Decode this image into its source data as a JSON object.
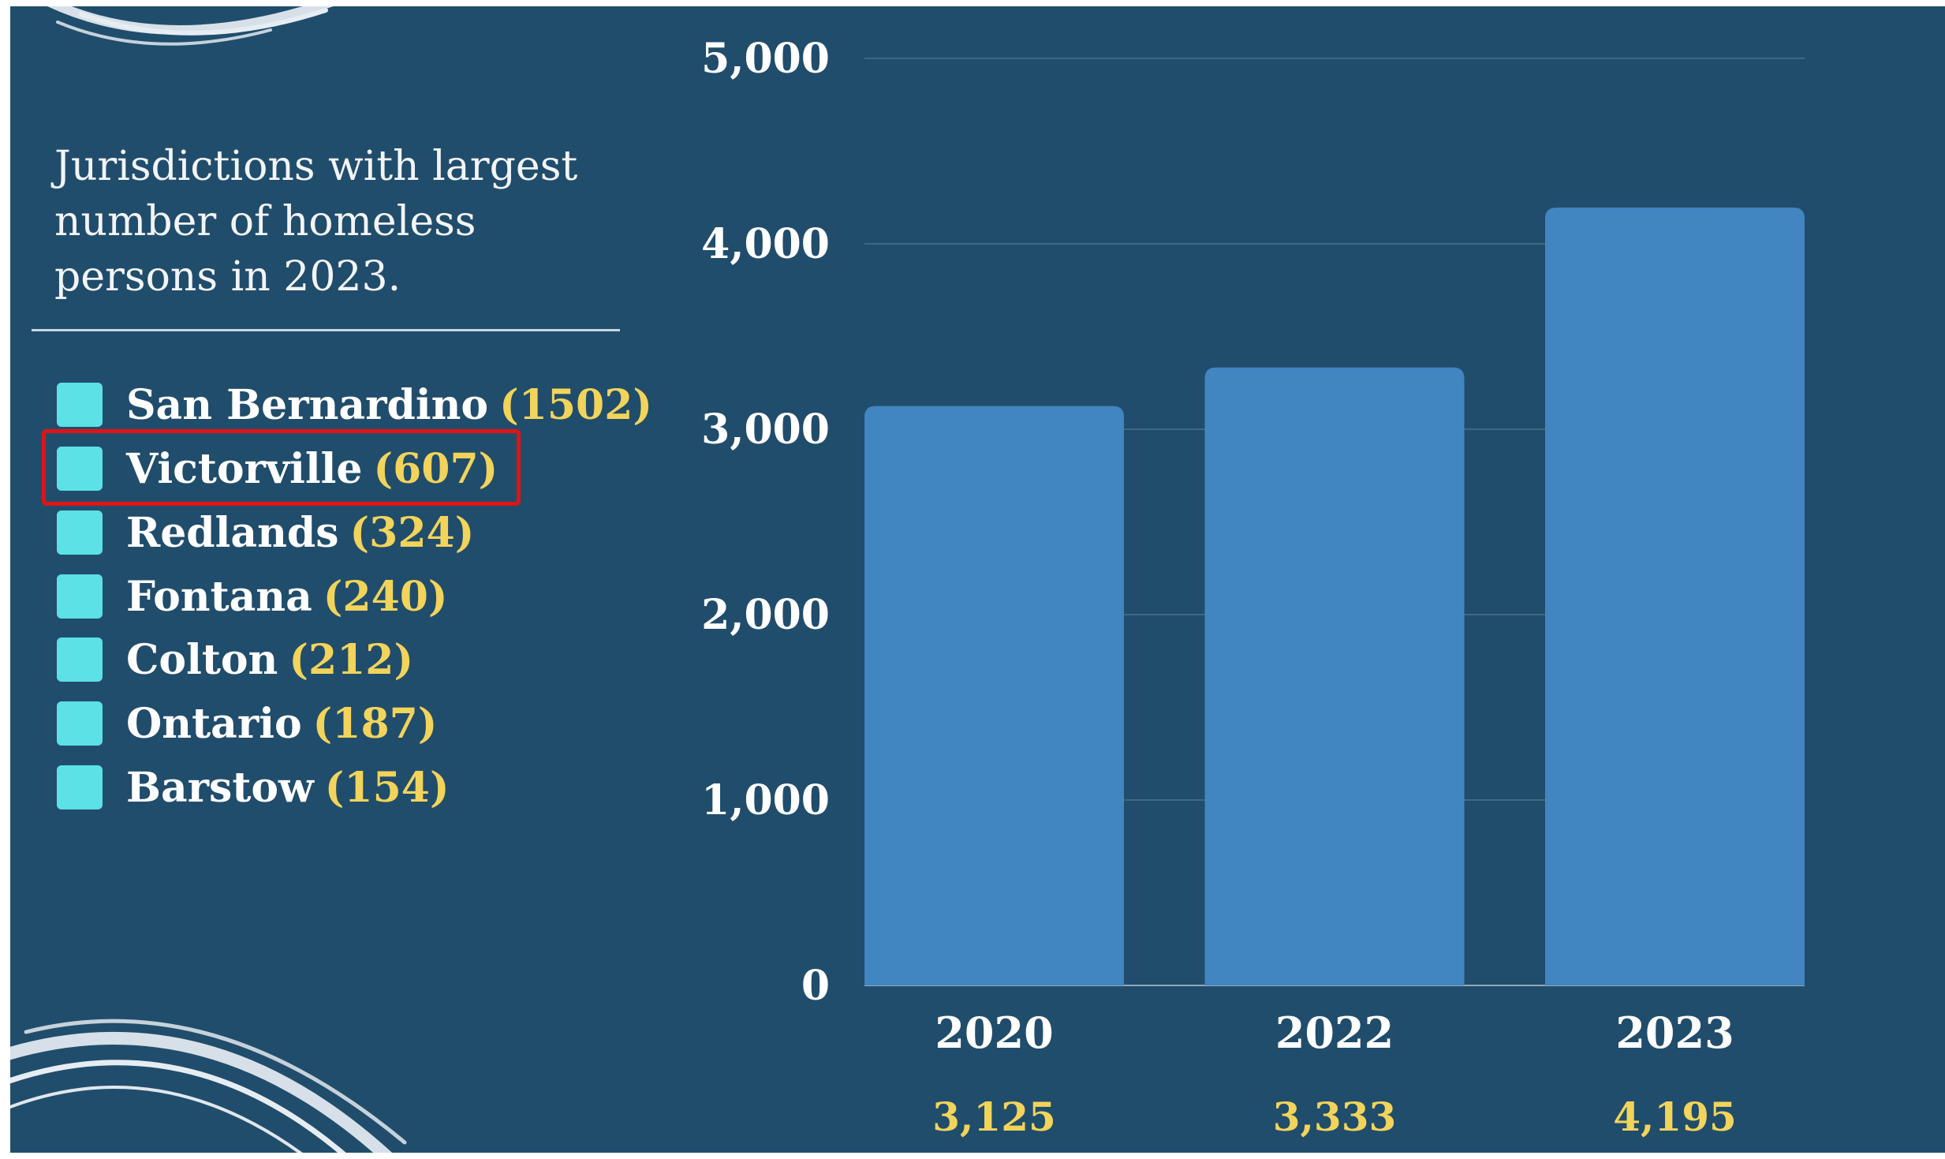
{
  "legend": {
    "title": "Jurisdictions with largest number of homeless persons in 2023.",
    "items": [
      {
        "name": "San Bernardino",
        "count": "(1502)"
      },
      {
        "name": "Victorville",
        "count": "(607)"
      },
      {
        "name": "Redlands",
        "count": "(324)"
      },
      {
        "name": "Fontana",
        "count": "(240)"
      },
      {
        "name": "Colton",
        "count": "(212)"
      },
      {
        "name": "Ontario",
        "count": "(187)"
      },
      {
        "name": "Barstow",
        "count": "(154)"
      }
    ],
    "swatch_color": "#5be1e6",
    "highlighted_item": "Victorville"
  },
  "colors": {
    "background": "#214d6c",
    "bar": "#4185c1",
    "count_text": "#f2d45a",
    "highlight": "#e01414"
  },
  "chart_data": {
    "type": "bar",
    "title": "",
    "xlabel": "",
    "ylabel": "",
    "categories": [
      "2020",
      "2022",
      "2023"
    ],
    "values": [
      3125,
      3333,
      4195
    ],
    "value_labels": [
      "3,125",
      "3,333",
      "4,195"
    ],
    "ylim": [
      0,
      5000
    ],
    "yticks": [
      0,
      1000,
      2000,
      3000,
      4000,
      5000
    ],
    "ytick_labels": [
      "0",
      "1,000",
      "2,000",
      "3,000",
      "4,000",
      "5,000"
    ],
    "grid": true
  }
}
